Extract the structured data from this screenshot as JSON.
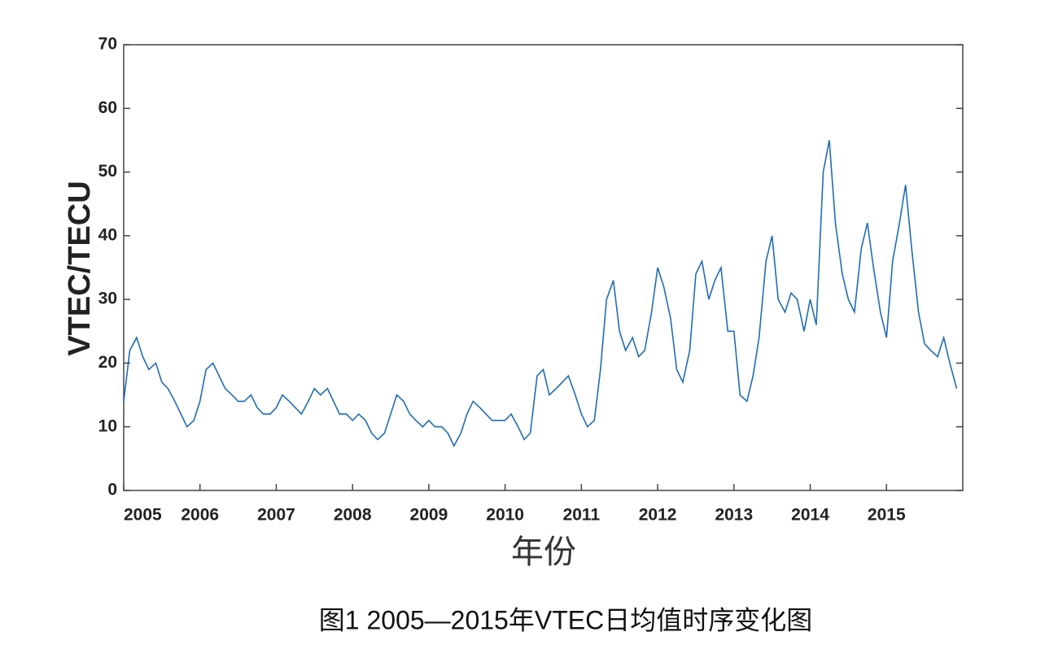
{
  "chart_data": {
    "type": "line",
    "y_label": "VTEC/TECU",
    "x_label": "年份",
    "caption": "图1  2005—2015年VTEC日均值时序变化图",
    "xlim": [
      2005,
      2016
    ],
    "xticks": [
      2005,
      2006,
      2007,
      2008,
      2009,
      2010,
      2011,
      2012,
      2013,
      2014,
      2015
    ],
    "ylim": [
      0,
      70
    ],
    "yticks": [
      0,
      10,
      20,
      30,
      40,
      50,
      60,
      70
    ],
    "x": [
      2005.0,
      2005.08,
      2005.17,
      2005.25,
      2005.33,
      2005.42,
      2005.5,
      2005.58,
      2005.67,
      2005.75,
      2005.83,
      2005.92,
      2006.0,
      2006.08,
      2006.17,
      2006.25,
      2006.33,
      2006.42,
      2006.5,
      2006.58,
      2006.67,
      2006.75,
      2006.83,
      2006.92,
      2007.0,
      2007.08,
      2007.17,
      2007.25,
      2007.33,
      2007.42,
      2007.5,
      2007.58,
      2007.67,
      2007.75,
      2007.83,
      2007.92,
      2008.0,
      2008.08,
      2008.17,
      2008.25,
      2008.33,
      2008.42,
      2008.5,
      2008.58,
      2008.67,
      2008.75,
      2008.83,
      2008.92,
      2009.0,
      2009.08,
      2009.17,
      2009.25,
      2009.33,
      2009.42,
      2009.5,
      2009.58,
      2009.67,
      2009.75,
      2009.83,
      2009.92,
      2010.0,
      2010.08,
      2010.17,
      2010.25,
      2010.33,
      2010.42,
      2010.5,
      2010.58,
      2010.67,
      2010.75,
      2010.83,
      2010.92,
      2011.0,
      2011.08,
      2011.17,
      2011.25,
      2011.33,
      2011.42,
      2011.5,
      2011.58,
      2011.67,
      2011.75,
      2011.83,
      2011.92,
      2012.0,
      2012.08,
      2012.17,
      2012.25,
      2012.33,
      2012.42,
      2012.5,
      2012.58,
      2012.67,
      2012.75,
      2012.83,
      2012.92,
      2013.0,
      2013.08,
      2013.17,
      2013.25,
      2013.33,
      2013.42,
      2013.5,
      2013.58,
      2013.67,
      2013.75,
      2013.83,
      2013.92,
      2014.0,
      2014.08,
      2014.17,
      2014.25,
      2014.33,
      2014.42,
      2014.5,
      2014.58,
      2014.67,
      2014.75,
      2014.83,
      2014.92,
      2015.0,
      2015.08,
      2015.17,
      2015.25,
      2015.33,
      2015.42,
      2015.5,
      2015.58,
      2015.67,
      2015.75,
      2015.83,
      2015.92
    ],
    "series": [
      {
        "name": "VTEC",
        "color": "#1f6db5",
        "values": [
          14,
          22,
          24,
          21,
          19,
          20,
          17,
          16,
          14,
          12,
          10,
          11,
          14,
          19,
          20,
          18,
          16,
          15,
          14,
          14,
          15,
          13,
          12,
          12,
          13,
          15,
          14,
          13,
          12,
          14,
          16,
          15,
          16,
          14,
          12,
          12,
          11,
          12,
          11,
          9,
          8,
          9,
          12,
          15,
          14,
          12,
          11,
          10,
          11,
          10,
          10,
          9,
          7,
          9,
          12,
          14,
          13,
          12,
          11,
          11,
          11,
          12,
          10,
          8,
          9,
          18,
          19,
          15,
          16,
          17,
          18,
          15,
          12,
          10,
          11,
          19,
          30,
          33,
          25,
          22,
          24,
          21,
          22,
          28,
          35,
          32,
          27,
          19,
          17,
          22,
          34,
          36,
          30,
          33,
          35,
          25,
          25,
          15,
          14,
          18,
          24,
          36,
          40,
          30,
          28,
          31,
          30,
          25,
          30,
          26,
          50,
          55,
          42,
          34,
          30,
          28,
          38,
          42,
          35,
          28,
          24,
          36,
          42,
          48,
          38,
          28,
          23,
          22,
          21,
          24,
          20,
          16
        ]
      }
    ]
  }
}
